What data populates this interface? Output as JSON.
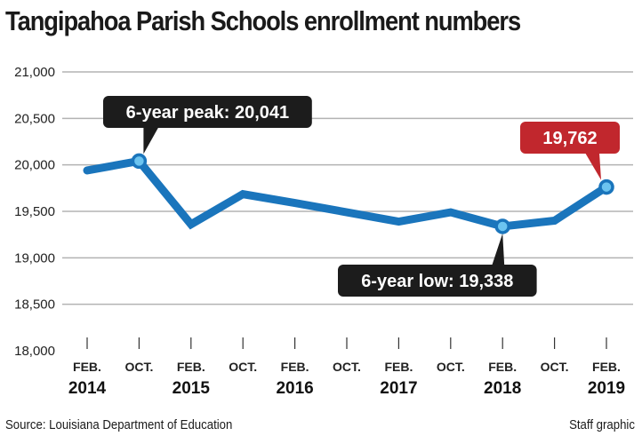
{
  "title": "Tangipahoa Parish Schools enrollment numbers",
  "source": "Source: Louisiana Department of Education",
  "credit": "Staff graphic",
  "colors": {
    "line": "#1a75bc",
    "marker_fill": "#6cc4f0",
    "callout_dark": "#1c1c1c",
    "callout_red": "#c1272d",
    "grid": "#b3b3b3"
  },
  "chart_data": {
    "type": "line",
    "title": "Tangipahoa Parish Schools enrollment numbers",
    "xlabel": "",
    "ylabel": "",
    "ylim": [
      18000,
      21000
    ],
    "yticks": [
      "21,000",
      "20,500",
      "20,000",
      "19,500",
      "19,000",
      "18,500",
      "18,000"
    ],
    "ytick_values": [
      21000,
      20500,
      20000,
      19500,
      19000,
      18500,
      18000
    ],
    "grid": true,
    "categories": [
      "FEB. 2014",
      "OCT. 2014",
      "FEB. 2015",
      "OCT. 2015",
      "FEB. 2016",
      "OCT. 2016",
      "FEB. 2017",
      "OCT. 2017",
      "FEB. 2018",
      "OCT. 2018",
      "FEB. 2019"
    ],
    "month_labels": [
      "FEB.",
      "OCT.",
      "FEB.",
      "OCT.",
      "FEB.",
      "OCT.",
      "FEB.",
      "OCT.",
      "FEB.",
      "OCT.",
      "FEB."
    ],
    "year_labels": [
      "2014",
      "",
      "2015",
      "",
      "2016",
      "",
      "2017",
      "",
      "2018",
      "",
      "2019"
    ],
    "values": [
      19940,
      20041,
      19360,
      19685,
      19590,
      19490,
      19390,
      19490,
      19338,
      19400,
      19762
    ],
    "annotations": [
      {
        "index": 1,
        "text": "6-year peak: 20,041",
        "style": "dark",
        "position": "above"
      },
      {
        "index": 8,
        "text": "6-year low: 19,338",
        "style": "dark",
        "position": "below"
      },
      {
        "index": 10,
        "text": "19,762",
        "style": "red",
        "position": "above"
      }
    ]
  }
}
